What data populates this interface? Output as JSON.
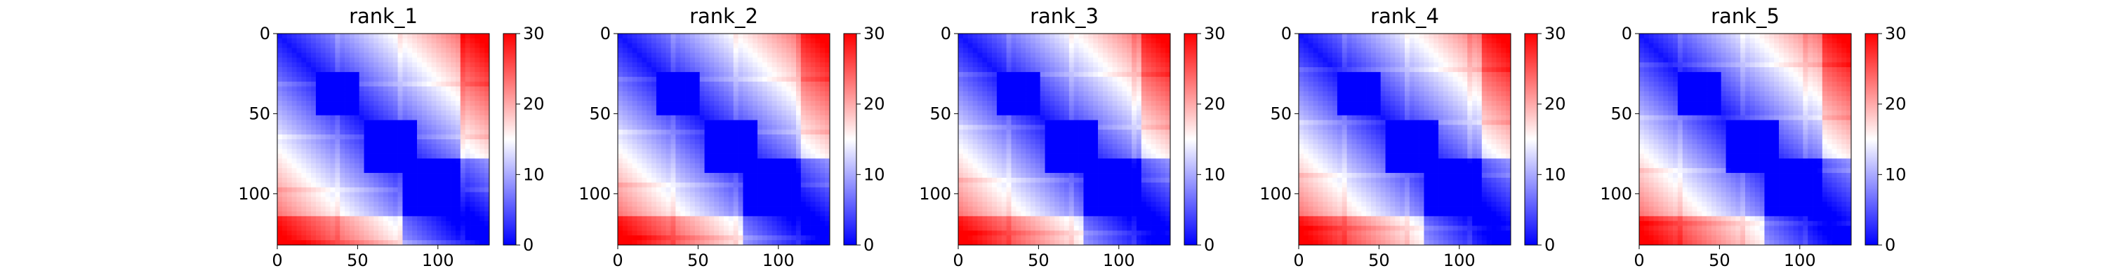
{
  "chart_data": [
    {
      "type": "heatmap",
      "title": "rank_1",
      "x": [
        0,
        132
      ],
      "y": [
        0,
        132
      ],
      "xlabel": "",
      "ylabel": "",
      "xticks": [
        0,
        50,
        100
      ],
      "yticks": [
        0,
        50,
        100
      ],
      "xlim": [
        0,
        132
      ],
      "ylim": [
        132,
        0
      ],
      "colorbar": {
        "min": 0,
        "max": 30,
        "ticks": [
          0,
          10,
          20,
          30
        ]
      },
      "colors": [
        "#0000ff",
        "#ffffff",
        "#ff0000"
      ]
    },
    {
      "type": "heatmap",
      "title": "rank_2",
      "x": [
        0,
        132
      ],
      "y": [
        0,
        132
      ],
      "xlabel": "",
      "ylabel": "",
      "xticks": [
        0,
        50,
        100
      ],
      "yticks": [
        0,
        50,
        100
      ],
      "xlim": [
        0,
        132
      ],
      "ylim": [
        132,
        0
      ],
      "colorbar": {
        "min": 0,
        "max": 30,
        "ticks": [
          0,
          10,
          20,
          30
        ]
      },
      "colors": [
        "#0000ff",
        "#ffffff",
        "#ff0000"
      ]
    },
    {
      "type": "heatmap",
      "title": "rank_3",
      "x": [
        0,
        132
      ],
      "y": [
        0,
        132
      ],
      "xlabel": "",
      "ylabel": "",
      "xticks": [
        0,
        50,
        100
      ],
      "yticks": [
        0,
        50,
        100
      ],
      "xlim": [
        0,
        132
      ],
      "ylim": [
        132,
        0
      ],
      "colorbar": {
        "min": 0,
        "max": 30,
        "ticks": [
          0,
          10,
          20,
          30
        ]
      },
      "colors": [
        "#0000ff",
        "#ffffff",
        "#ff0000"
      ]
    },
    {
      "type": "heatmap",
      "title": "rank_4",
      "x": [
        0,
        132
      ],
      "y": [
        0,
        132
      ],
      "xlabel": "",
      "ylabel": "",
      "xticks": [
        0,
        50,
        100
      ],
      "yticks": [
        0,
        50,
        100
      ],
      "xlim": [
        0,
        132
      ],
      "ylim": [
        132,
        0
      ],
      "colorbar": {
        "min": 0,
        "max": 30,
        "ticks": [
          0,
          10,
          20,
          30
        ]
      },
      "colors": [
        "#0000ff",
        "#ffffff",
        "#ff0000"
      ]
    },
    {
      "type": "heatmap",
      "title": "rank_5",
      "x": [
        0,
        132
      ],
      "y": [
        0,
        132
      ],
      "xlabel": "",
      "ylabel": "",
      "xticks": [
        0,
        50,
        100
      ],
      "yticks": [
        0,
        50,
        100
      ],
      "xlim": [
        0,
        132
      ],
      "ylim": [
        132,
        0
      ],
      "colorbar": {
        "min": 0,
        "max": 30,
        "ticks": [
          0,
          10,
          20,
          30
        ]
      },
      "colors": [
        "#0000ff",
        "#ffffff",
        "#ff0000"
      ]
    }
  ]
}
